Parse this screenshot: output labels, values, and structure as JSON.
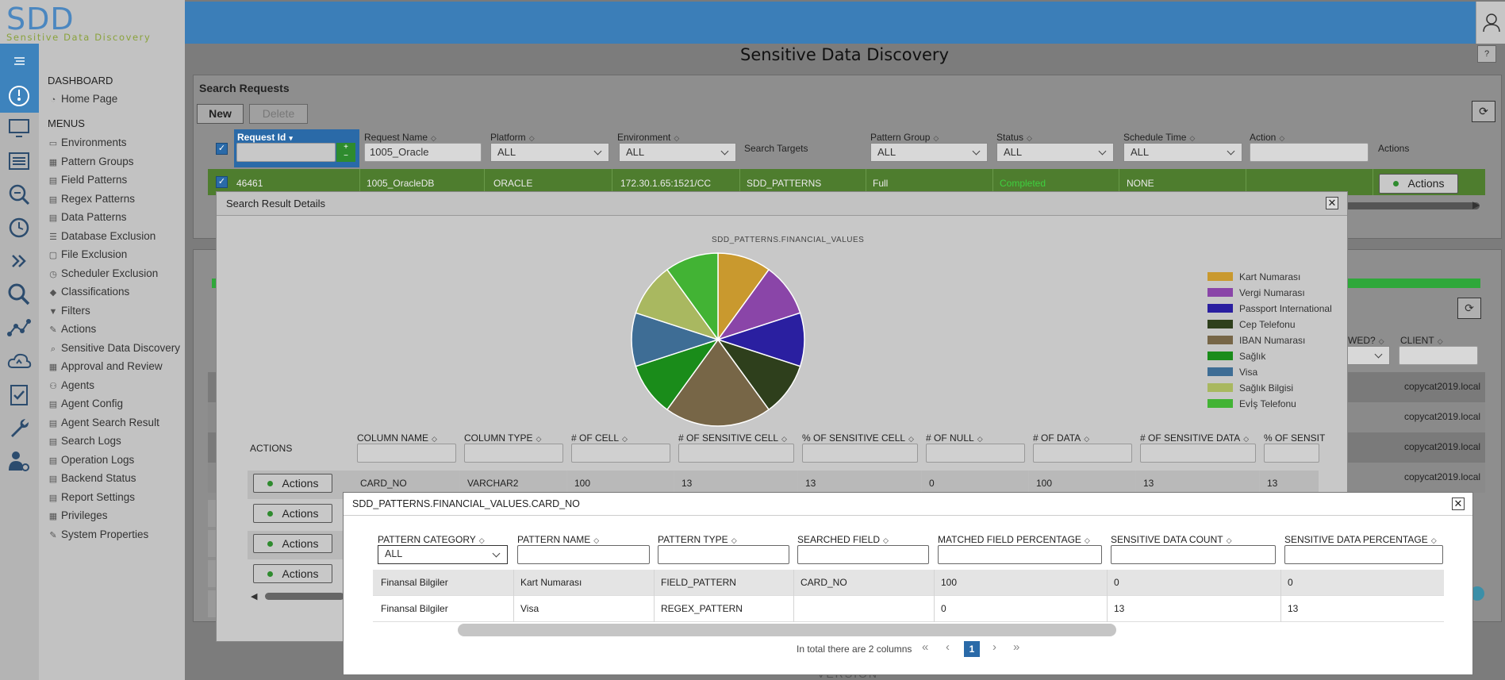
{
  "app": {
    "logo": "SDD",
    "tagline": "Sensitive Data Discovery",
    "page_title": "Sensitive Data Discovery",
    "help": "?"
  },
  "sidebar": {
    "dashboard_header": "DASHBOARD",
    "home": "Home Page",
    "menus_header": "MENUS",
    "items": [
      {
        "label": "Environments",
        "icon": "monitor-icon"
      },
      {
        "label": "Pattern Groups",
        "icon": "grid-icon"
      },
      {
        "label": "Field Patterns",
        "icon": "doc-icon"
      },
      {
        "label": "Regex Patterns",
        "icon": "doc-icon"
      },
      {
        "label": "Data Patterns",
        "icon": "doc-icon"
      },
      {
        "label": "Database Exclusion",
        "icon": "database-icon"
      },
      {
        "label": "File Exclusion",
        "icon": "file-icon"
      },
      {
        "label": "Scheduler Exclusion",
        "icon": "clock-icon"
      },
      {
        "label": "Classifications",
        "icon": "tag-icon"
      },
      {
        "label": "Filters",
        "icon": "filter-icon"
      },
      {
        "label": "Actions",
        "icon": "action-icon"
      },
      {
        "label": "Sensitive Data Discovery",
        "icon": "search-icon"
      },
      {
        "label": "Approval and Review",
        "icon": "grid-icon"
      },
      {
        "label": "Agents",
        "icon": "agents-icon"
      },
      {
        "label": "Agent Config",
        "icon": "doc-icon"
      },
      {
        "label": "Agent Search Result",
        "icon": "doc-icon"
      },
      {
        "label": "Search Logs",
        "icon": "doc-icon"
      },
      {
        "label": "Operation Logs",
        "icon": "doc-icon"
      },
      {
        "label": "Backend Status",
        "icon": "doc-icon"
      },
      {
        "label": "Report Settings",
        "icon": "doc-icon"
      },
      {
        "label": "Privileges",
        "icon": "grid-icon"
      },
      {
        "label": "System Properties",
        "icon": "wrench-icon"
      }
    ]
  },
  "search_requests": {
    "title": "Search Requests",
    "new_label": "New",
    "delete_label": "Delete",
    "columns": {
      "request_id": "Request Id",
      "request_name": "Request Name",
      "platform": "Platform",
      "environment": "Environment",
      "search_targets": "Search Targets",
      "pattern_group": "Pattern Group",
      "status": "Status",
      "schedule_time": "Schedule Time",
      "action": "Action",
      "actions": "Actions"
    },
    "filters": {
      "request_name": "1005_Oracle",
      "platform": "ALL",
      "environment": "ALL",
      "pattern_group": "ALL",
      "status": "ALL",
      "schedule_time": "ALL"
    },
    "row": {
      "id": "46461",
      "name": "1005_OracleDB",
      "platform": "ORACLE",
      "environment": "172.30.1.65:1521/CC",
      "targets": "SDD_PATTERNS",
      "pattern_group": "Full",
      "status": "Completed",
      "schedule": "NONE",
      "actions": "Actions"
    }
  },
  "background_panel": {
    "col_wed": "WED?",
    "col_client": "CLIENT",
    "client_values": [
      "copycat2019.local",
      "copycat2019.local",
      "copycat2019.local",
      "copycat2019.local"
    ]
  },
  "result_dialog": {
    "title": "Search Result Details",
    "chart_title": "SDD_PATTERNS.FINANCIAL_VALUES",
    "actions_header": "ACTIONS",
    "columns": [
      "COLUMN NAME",
      "COLUMN TYPE",
      "# OF CELL",
      "# OF SENSITIVE CELL",
      "% OF SENSITIVE CELL",
      "# OF NULL",
      "# OF DATA",
      "# OF SENSITIVE DATA",
      "% OF SENSIT"
    ],
    "row": [
      "CARD_NO",
      "VARCHAR2",
      "100",
      "13",
      "13",
      "0",
      "100",
      "13",
      "13"
    ],
    "action_label": "Actions"
  },
  "chart_data": {
    "type": "pie",
    "title": "SDD_PATTERNS.FINANCIAL_VALUES",
    "legend_position": "right",
    "slices": [
      {
        "label": "Kart Numarası",
        "value": 1,
        "color": "#c9992e"
      },
      {
        "label": "Vergi Numarası",
        "value": 1,
        "color": "#8a45a8"
      },
      {
        "label": "Passport International",
        "value": 1,
        "color": "#2a1fa0"
      },
      {
        "label": "Cep Telefonu",
        "value": 1,
        "color": "#2e3f1c"
      },
      {
        "label": "IBAN Numarası",
        "value": 2,
        "color": "#776647"
      },
      {
        "label": "Sağlık",
        "value": 1,
        "color": "#1a8c1a"
      },
      {
        "label": "Visa",
        "value": 1,
        "color": "#3e6d95"
      },
      {
        "label": "Sağlık Bilgisi",
        "value": 1,
        "color": "#a9b860"
      },
      {
        "label": "Evİş Telefonu",
        "value": 1,
        "color": "#42b334"
      }
    ]
  },
  "detail_dialog": {
    "title": "SDD_PATTERNS.FINANCIAL_VALUES.CARD_NO",
    "columns": [
      "PATTERN CATEGORY",
      "PATTERN NAME",
      "PATTERN TYPE",
      "SEARCHED FIELD",
      "MATCHED FIELD PERCENTAGE",
      "SENSITIVE DATA COUNT",
      "SENSITIVE DATA PERCENTAGE"
    ],
    "category_filter": "ALL",
    "rows": [
      [
        "Finansal Bilgiler",
        "Kart Numarası",
        "FIELD_PATTERN",
        "CARD_NO",
        "100",
        "0",
        "0"
      ],
      [
        "Finansal Bilgiler",
        "Visa",
        "REGEX_PATTERN",
        "",
        "0",
        "13",
        "13"
      ]
    ],
    "total_text": "In total there are 2 columns",
    "page": "1",
    "first": "«",
    "prev": "‹",
    "next": "›",
    "last": "»"
  },
  "footer_text": "VERSION"
}
